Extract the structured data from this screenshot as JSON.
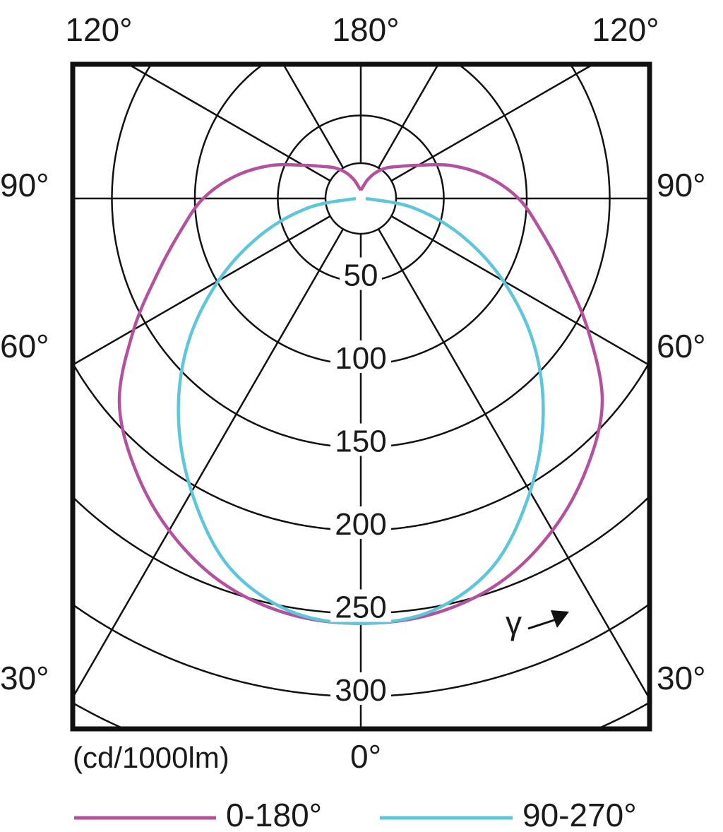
{
  "chart_data": {
    "type": "polar",
    "units": "(cd/1000lm)",
    "radial_ticks": [
      "50",
      "100",
      "150",
      "200",
      "250",
      "300"
    ],
    "radial_tick_values": [
      50,
      100,
      150,
      200,
      250,
      300
    ],
    "radial_grid_extra": [
      350
    ],
    "angle_labels": {
      "top_left": "120°",
      "top_center": "180°",
      "top_right": "120°",
      "left": [
        "90°",
        "60°",
        "30°"
      ],
      "right": [
        "90°",
        "60°",
        "30°"
      ],
      "bottom_center": "0°"
    },
    "angle_grid_step_deg": 30,
    "gamma_label": "γ",
    "grid": true,
    "legend_placement": "bottom",
    "series": [
      {
        "name": "0-180°",
        "color": "#b5509f",
        "angles": [
          0,
          10,
          20,
          30,
          40,
          50,
          60,
          70,
          80,
          90,
          100,
          110,
          120,
          130,
          140,
          150,
          160,
          170,
          180
        ],
        "values": [
          256,
          254,
          246,
          231,
          212,
          190,
          158,
          130,
          110,
          95,
          77,
          58,
          40,
          30,
          24,
          18,
          12,
          7,
          5
        ]
      },
      {
        "name": "90-270°",
        "color": "#5cc6db",
        "angles": [
          0,
          10,
          20,
          30,
          40,
          50,
          60,
          70,
          80,
          90
        ],
        "values": [
          256,
          252,
          235,
          204,
          171,
          136,
          99,
          64,
          32,
          3
        ]
      }
    ]
  }
}
